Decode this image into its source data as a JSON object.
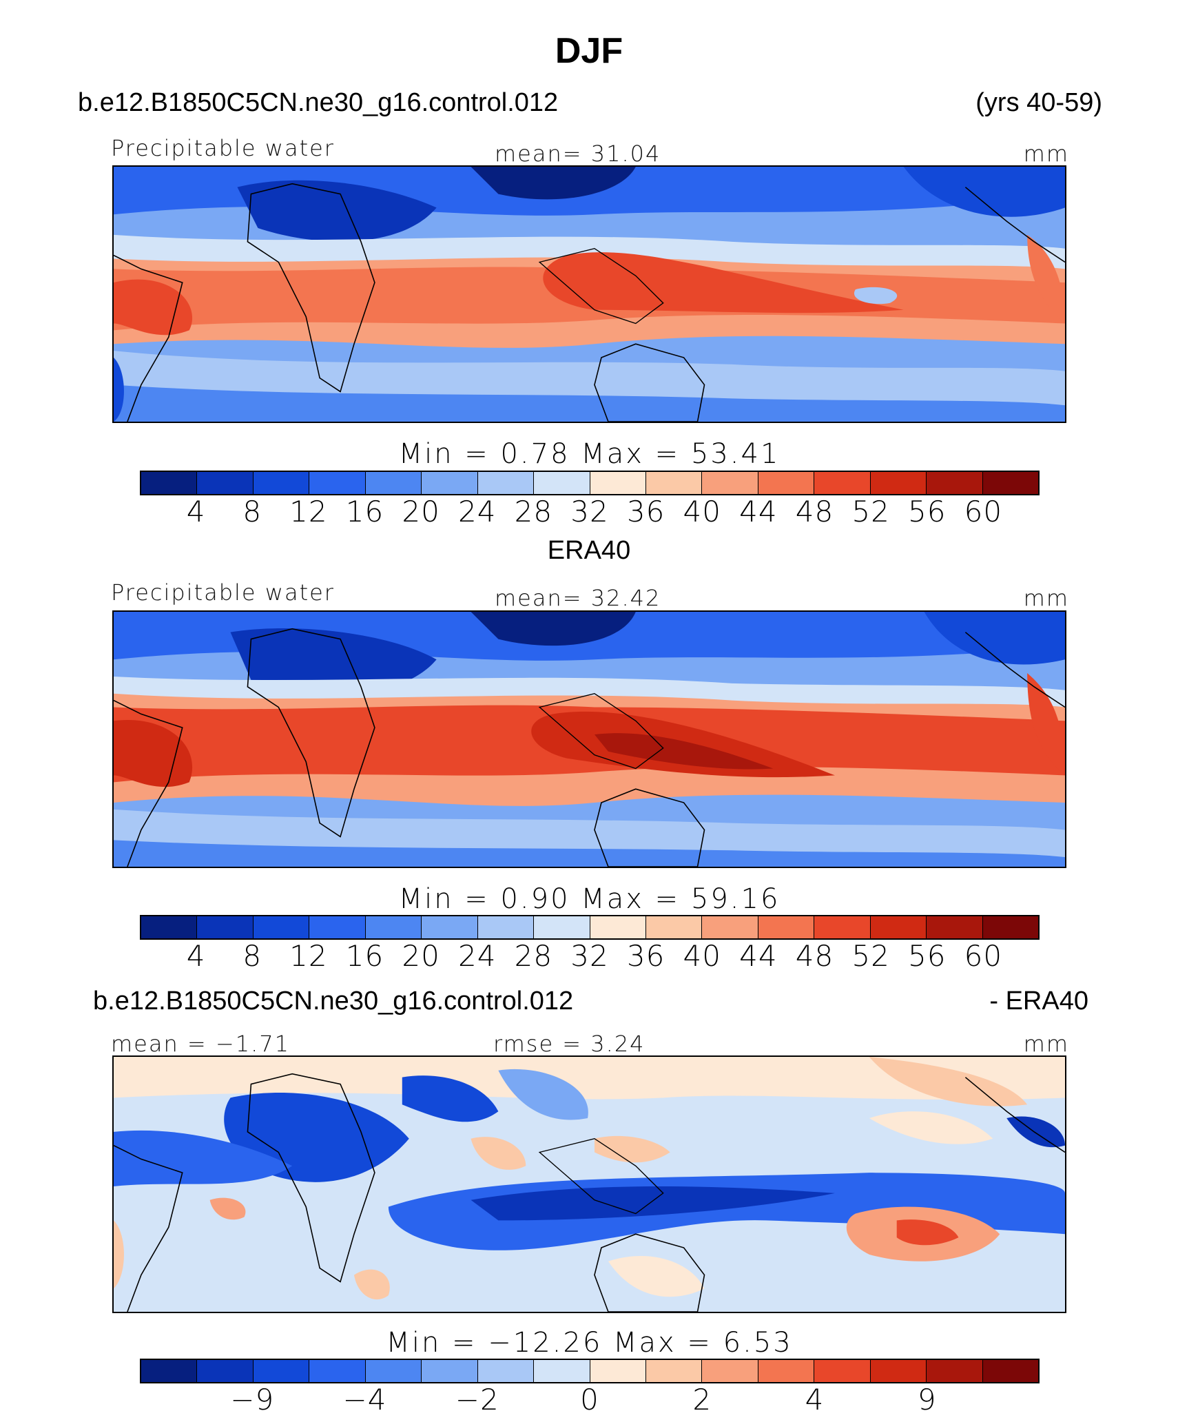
{
  "figure": {
    "title": "DJF"
  },
  "palette": [
    "#061f7f",
    "#0a34b8",
    "#1249d8",
    "#2a64ee",
    "#4d86f2",
    "#7aa8f4",
    "#a9c8f6",
    "#d3e4f8",
    "#fde9d6",
    "#fbc9a7",
    "#f8a07c",
    "#f37550",
    "#e8472a",
    "#d02a13",
    "#a8170c",
    "#7c0707"
  ],
  "panels": [
    {
      "id": "model",
      "header_left": "b.e12.B1850C5CN.ne30_g16.control.012",
      "header_right": "(yrs 40-59)",
      "label_left": "Precipitable water",
      "label_center": "mean=   31.04",
      "label_right": "mm",
      "stats": "Min  =     0.78  Max  =    53.41",
      "ticks": [
        "4",
        "8",
        "12",
        "16",
        "20",
        "24",
        "28",
        "32",
        "36",
        "40",
        "44",
        "48",
        "52",
        "56",
        "60"
      ],
      "field": {
        "mean": 31.04,
        "min": 0.78,
        "max": 53.41,
        "units": "mm"
      }
    },
    {
      "id": "obs",
      "header_center": "ERA40",
      "label_left": "Precipitable water",
      "label_center": "mean=   32.42",
      "label_right": "mm",
      "stats": "Min  =    0.90  Max  =    59.16",
      "ticks": [
        "4",
        "8",
        "12",
        "16",
        "20",
        "24",
        "28",
        "32",
        "36",
        "40",
        "44",
        "48",
        "52",
        "56",
        "60"
      ],
      "field": {
        "mean": 32.42,
        "min": 0.9,
        "max": 59.16,
        "units": "mm"
      }
    },
    {
      "id": "diff",
      "header_left": "b.e12.B1850C5CN.ne30_g16.control.012",
      "header_right": "- ERA40",
      "label_left": "mean =  −1.71",
      "label_center": "rmse  =     3.24",
      "label_right": "mm",
      "stats": "Min  = −12.26  Max  =     6.53",
      "ticks": [
        "−9",
        "−4",
        "−2",
        "0",
        "2",
        "4",
        "9"
      ],
      "tick_boundaries": [
        2,
        4,
        6,
        8,
        10,
        12,
        14
      ],
      "field": {
        "mean": -1.71,
        "rmse": 3.24,
        "min": -12.26,
        "max": 6.53,
        "units": "mm"
      }
    }
  ]
}
